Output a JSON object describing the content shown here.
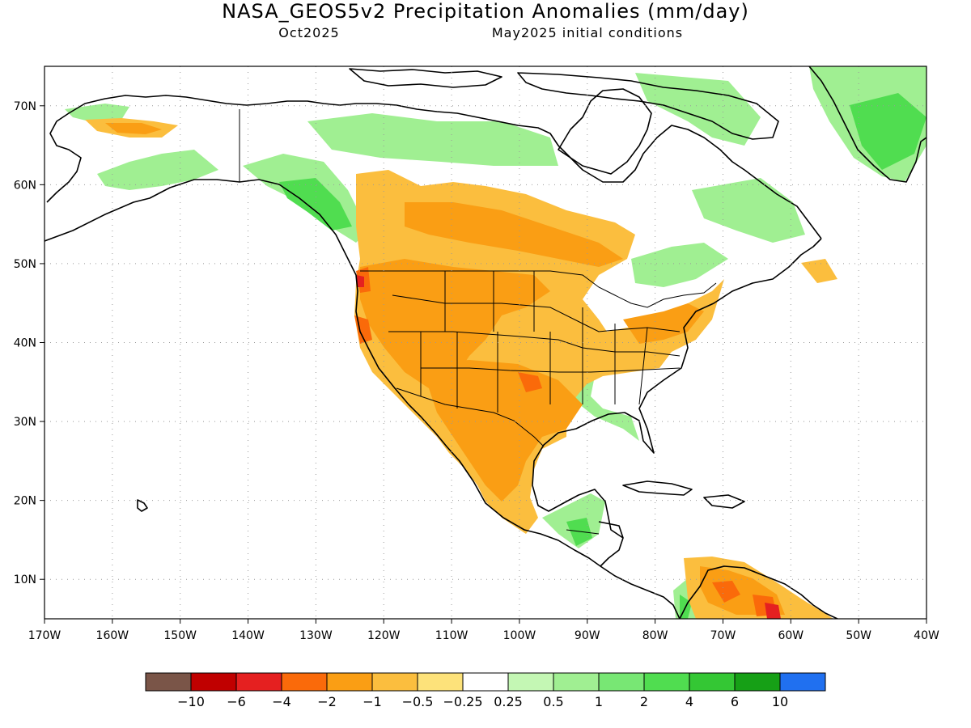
{
  "title": "NASA_GEOS5v2 Precipitation Anomalies (mm/day)",
  "valid_month": "Oct2025",
  "init_text": "May2025 initial conditions",
  "axes": {
    "lon_labels": [
      "170W",
      "160W",
      "150W",
      "140W",
      "130W",
      "120W",
      "110W",
      "100W",
      "90W",
      "80W",
      "70W",
      "60W",
      "50W",
      "40W"
    ],
    "lat_labels": [
      "70N",
      "60N",
      "50N",
      "40N",
      "30N",
      "20N",
      "10N"
    ],
    "lon_range": [
      -170,
      -40
    ],
    "lat_range": [
      5,
      75
    ]
  },
  "legend": {
    "colors": [
      "#7a5548",
      "#c00000",
      "#e52020",
      "#fa6a0a",
      "#fa9e14",
      "#fbbe3e",
      "#fde27a",
      "#ffffff",
      "#c4f7b4",
      "#a0ef92",
      "#78e774",
      "#50dd50",
      "#34c734",
      "#16a016",
      "#2070f0"
    ],
    "labels": [
      "-10",
      "-6",
      "-4",
      "-2",
      "-1",
      "-0.5",
      "-0.25",
      "0.25",
      "0.5",
      "1",
      "2",
      "4",
      "6",
      "10"
    ]
  }
}
